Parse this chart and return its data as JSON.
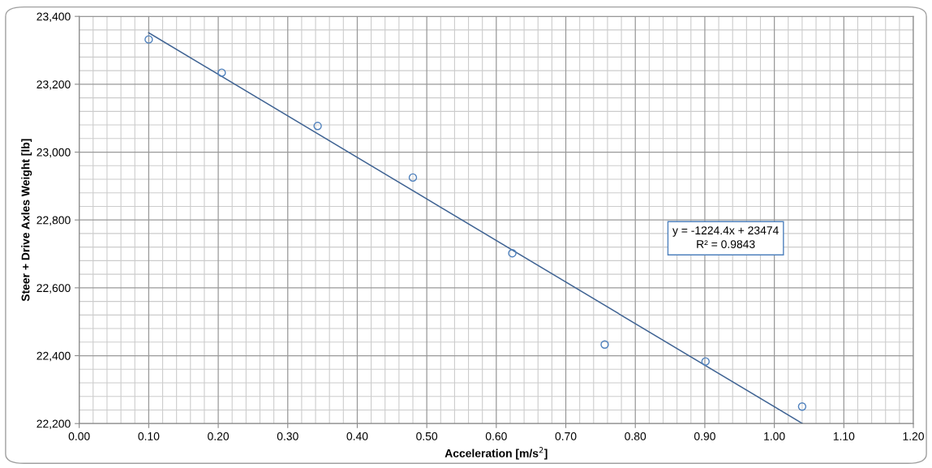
{
  "chart_data": {
    "type": "scatter",
    "xlabel": "Acceleration [m/s$^{2}$]",
    "ylabel": "Steer + Drive Axles Weight [lb]",
    "x": [
      0.1,
      0.205,
      0.343,
      0.48,
      0.623,
      0.756,
      0.901,
      1.04
    ],
    "series": [
      {
        "color": "#4f81bd",
        "values": [
          23332,
          23234,
          23077,
          22925,
          22702,
          22433,
          22383,
          22250
        ],
        "marker": "circle"
      },
      {
        "type": "line",
        "color": "#3f6393",
        "x": [
          0.1,
          1.04
        ],
        "values": [
          23351.6,
          22200.7
        ],
        "marker": "none"
      }
    ],
    "annotations": [
      "y = -1224.4x + 23474\nR² = 0.9843"
    ],
    "xlim": [
      0.0,
      1.2
    ],
    "xticks": [
      {
        "value": 0.0,
        "label": "0.00"
      },
      {
        "value": 0.1,
        "label": "0.10"
      },
      {
        "value": 0.2,
        "label": "0.20"
      },
      {
        "value": 0.3,
        "label": "0.30"
      },
      {
        "value": 0.4,
        "label": "0.40"
      },
      {
        "value": 0.5,
        "label": "0.50"
      },
      {
        "value": 0.6,
        "label": "0.60"
      },
      {
        "value": 0.7,
        "label": "0.70"
      },
      {
        "value": 0.8,
        "label": "0.80"
      },
      {
        "value": 0.9,
        "label": "0.90"
      },
      {
        "value": 1.0,
        "label": "1.00"
      },
      {
        "value": 1.1,
        "label": "1.10"
      },
      {
        "value": 1.2,
        "label": "1.20"
      }
    ],
    "ylim": [
      22200,
      23400
    ],
    "yticks": [
      {
        "value": 22200,
        "label": "22,200"
      },
      {
        "value": 22400,
        "label": "22,400"
      },
      {
        "value": 22600,
        "label": "22,600"
      },
      {
        "value": 22800,
        "label": "22,800"
      },
      {
        "value": 23000,
        "label": "23,000"
      },
      {
        "value": 23200,
        "label": "23,200"
      },
      {
        "value": 23400,
        "label": "23,400"
      }
    ],
    "grid": true
  }
}
